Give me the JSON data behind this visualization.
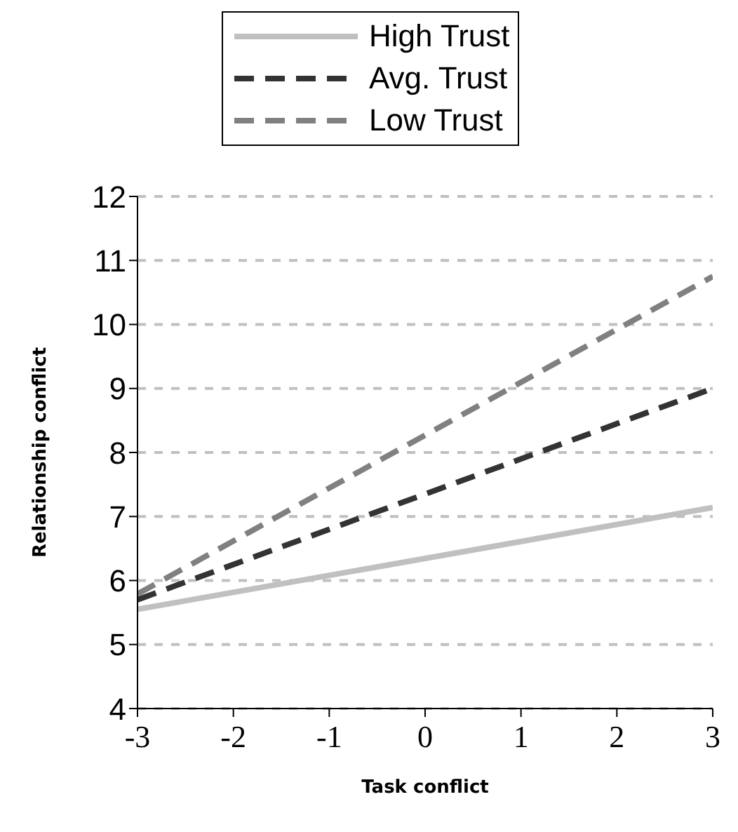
{
  "chart_data": {
    "type": "line",
    "xlabel": "Task conflict",
    "ylabel": "Relationship conflict",
    "x": [
      -3,
      3
    ],
    "series": [
      {
        "name": "High Trust",
        "color": "#c0c0c0",
        "line_style": "solid",
        "values": [
          5.55,
          7.14
        ]
      },
      {
        "name": "Avg. Trust",
        "color": "#333333",
        "line_style": "dashed",
        "values": [
          5.7,
          9.0
        ]
      },
      {
        "name": "Low Trust",
        "color": "#808080",
        "line_style": "dashed",
        "values": [
          5.79,
          10.75
        ]
      }
    ],
    "xlim": [
      -3,
      3
    ],
    "xticks": [
      -3,
      -2,
      -1,
      0,
      1,
      2,
      3
    ],
    "ylim": [
      4,
      12
    ],
    "yticks": [
      4,
      5,
      6,
      7,
      8,
      9,
      10,
      11,
      12
    ],
    "grid": "y",
    "legend": "top",
    "marker": "none"
  }
}
